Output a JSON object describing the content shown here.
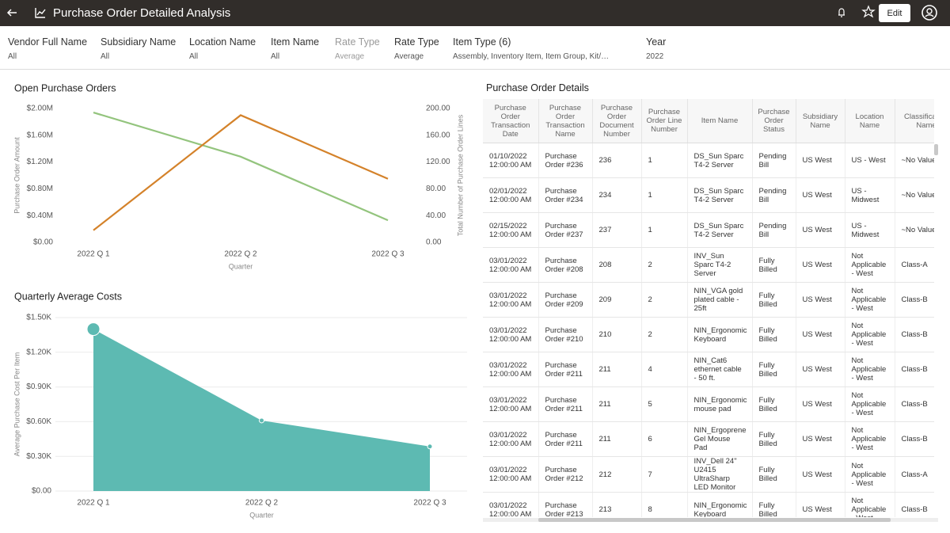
{
  "header": {
    "title": "Purchase Order Detailed Analysis",
    "edit_button": "Edit"
  },
  "filters": [
    {
      "label": "Vendor Full Name",
      "value": "All"
    },
    {
      "label": "Subsidiary Name",
      "value": "All"
    },
    {
      "label": "Location Name",
      "value": "All"
    },
    {
      "label": "Item Name",
      "value": "All"
    },
    {
      "label": "Rate Type",
      "value": "Average",
      "disabled": true
    },
    {
      "label": "Rate Type",
      "value": "Average"
    },
    {
      "label": "Item Type (6)",
      "value": "Assembly, Inventory Item, Item Group, Kit/…"
    },
    {
      "label": "Year",
      "value": "2022"
    }
  ],
  "chart_data": [
    {
      "type": "line",
      "title": "Open Purchase Orders",
      "x_label": "Quarter",
      "y_label": "Purchase Order Amount",
      "y2_label": "Total Number of Purchase Order Lines",
      "categories": [
        "2022 Q 1",
        "2022 Q 2",
        "2022 Q 3"
      ],
      "series": [
        {
          "color": "#93c47d",
          "values": [
            1940000,
            1280000,
            330000
          ]
        },
        {
          "color": "#d4822a",
          "axis": "y2",
          "values": [
            18,
            190,
            95
          ]
        }
      ],
      "ylim": [
        0,
        2000000
      ],
      "yticks": [
        {
          "value": 0,
          "label": "$0.00"
        },
        {
          "value": 400000,
          "label": "$0.40M"
        },
        {
          "value": 800000,
          "label": "$0.80M"
        },
        {
          "value": 1200000,
          "label": "$1.20M"
        },
        {
          "value": 1600000,
          "label": "$1.60M"
        },
        {
          "value": 2000000,
          "label": "$2.00M"
        }
      ],
      "y2lim": [
        0,
        200
      ],
      "y2ticks": [
        {
          "value": 0,
          "label": "0.00"
        },
        {
          "value": 40,
          "label": "40.00"
        },
        {
          "value": 80,
          "label": "80.00"
        },
        {
          "value": 120,
          "label": "120.00"
        },
        {
          "value": 160,
          "label": "160.00"
        },
        {
          "value": 200,
          "label": "200.00"
        }
      ],
      "grid": false
    },
    {
      "type": "area",
      "title": "Quarterly Average Costs",
      "x_label": "Quarter",
      "y_label": "Average Purchase Cost Per Item",
      "categories": [
        "2022 Q 1",
        "2022 Q 2",
        "2022 Q 3"
      ],
      "values": [
        1400,
        610,
        385
      ],
      "color": "#5dbab2",
      "ylim": [
        0,
        1500
      ],
      "yticks": [
        {
          "value": 0,
          "label": "$0.00"
        },
        {
          "value": 300,
          "label": "$0.30K"
        },
        {
          "value": 600,
          "label": "$0.60K"
        },
        {
          "value": 900,
          "label": "$0.90K"
        },
        {
          "value": 1200,
          "label": "$1.20K"
        },
        {
          "value": 1500,
          "label": "$1.50K"
        }
      ],
      "grid": true
    }
  ],
  "table": {
    "title": "Purchase Order Details",
    "columns": [
      "Purchase Order Transaction Date",
      "Purchase Order Transaction Name",
      "Purchase Order Document Number",
      "Purchase Order Line Number",
      "Item Name",
      "Purchase Order Status",
      "Subsidiary Name",
      "Location Name",
      "Classification Name"
    ],
    "rows": [
      [
        "01/10/2022 12:00:00 AM",
        "Purchase Order #236",
        "236",
        "1",
        "DS_Sun Sparc T4-2 Server",
        "Pending Bill",
        "US West",
        "US - West",
        "~No Value~"
      ],
      [
        "02/01/2022 12:00:00 AM",
        "Purchase Order #234",
        "234",
        "1",
        "DS_Sun Sparc T4-2 Server",
        "Pending Bill",
        "US West",
        "US - Midwest",
        "~No Value~"
      ],
      [
        "02/15/2022 12:00:00 AM",
        "Purchase Order #237",
        "237",
        "1",
        "DS_Sun Sparc T4-2 Server",
        "Pending Bill",
        "US West",
        "US - Midwest",
        "~No Value~"
      ],
      [
        "03/01/2022 12:00:00 AM",
        "Purchase Order #208",
        "208",
        "2",
        "INV_Sun Sparc T4-2 Server",
        "Fully Billed",
        "US West",
        "Not Applicable - West",
        "Class-A"
      ],
      [
        "03/01/2022 12:00:00 AM",
        "Purchase Order #209",
        "209",
        "2",
        "NIN_VGA gold plated cable - 25ft",
        "Fully Billed",
        "US West",
        "Not Applicable - West",
        "Class-B"
      ],
      [
        "03/01/2022 12:00:00 AM",
        "Purchase Order #210",
        "210",
        "2",
        "NIN_Ergonomic Keyboard",
        "Fully Billed",
        "US West",
        "Not Applicable - West",
        "Class-B"
      ],
      [
        "03/01/2022 12:00:00 AM",
        "Purchase Order #211",
        "211",
        "4",
        "NIN_Cat6 ethernet cable - 50 ft.",
        "Fully Billed",
        "US West",
        "Not Applicable - West",
        "Class-B"
      ],
      [
        "03/01/2022 12:00:00 AM",
        "Purchase Order #211",
        "211",
        "5",
        "NIN_Ergonomic mouse pad",
        "Fully Billed",
        "US West",
        "Not Applicable - West",
        "Class-B"
      ],
      [
        "03/01/2022 12:00:00 AM",
        "Purchase Order #211",
        "211",
        "6",
        "NIN_Ergoprene Gel Mouse Pad",
        "Fully Billed",
        "US West",
        "Not Applicable - West",
        "Class-B"
      ],
      [
        "03/01/2022 12:00:00 AM",
        "Purchase Order #212",
        "212",
        "7",
        "INV_Dell 24\" U2415 UltraSharp LED Monitor",
        "Fully Billed",
        "US West",
        "Not Applicable - West",
        "Class-A"
      ],
      [
        "03/01/2022 12:00:00 AM",
        "Purchase Order #213",
        "213",
        "8",
        "NIN_Ergonomic Keyboard",
        "Fully Billed",
        "US West",
        "Not Applicable - West",
        "Class-B"
      ]
    ]
  }
}
